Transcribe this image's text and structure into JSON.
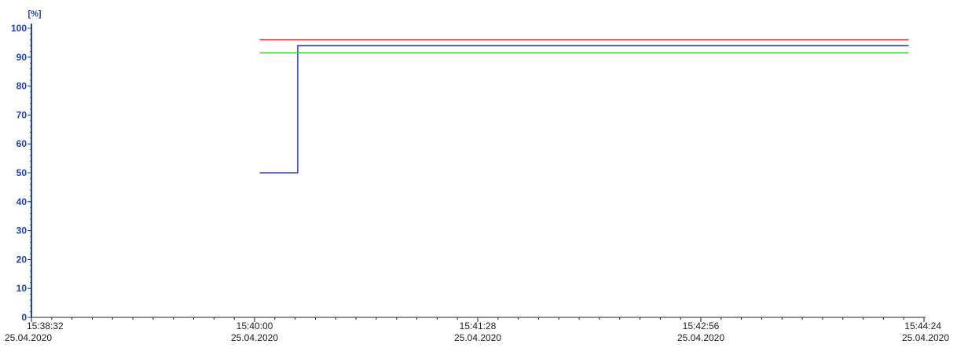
{
  "chart_data": {
    "type": "line",
    "title": "",
    "xlabel": "",
    "ylabel": "[%]",
    "ylim": [
      0,
      100
    ],
    "y_ticks": [
      "0",
      "10",
      "20",
      "30",
      "40",
      "50",
      "60",
      "70",
      "80",
      "90",
      "100"
    ],
    "x_ticks": [
      {
        "time": "15:38:32",
        "date": "25.04.2020"
      },
      {
        "time": "15:40:00",
        "date": "25.04.2020"
      },
      {
        "time": "15:41:28",
        "date": "25.04.2020"
      },
      {
        "time": "15:42:56",
        "date": "25.04.2020"
      },
      {
        "time": "15:44:24",
        "date": "25.04.2020"
      }
    ],
    "xlim": [
      "15:38:32",
      "15:44:24"
    ],
    "grid": false,
    "legend": "none",
    "step": true,
    "series": [
      {
        "color": "#e8453c",
        "points": [
          {
            "x": "15:40:02",
            "y": 96
          },
          {
            "x": "15:44:18",
            "y": 96
          }
        ]
      },
      {
        "color": "#2e3fd0",
        "points": [
          {
            "x": "15:40:02",
            "y": 50
          },
          {
            "x": "15:40:17",
            "y": 50
          },
          {
            "x": "15:40:17",
            "y": 94
          },
          {
            "x": "15:44:18",
            "y": 94
          }
        ]
      },
      {
        "color": "#39d13a",
        "points": [
          {
            "x": "15:40:02",
            "y": 91.5
          },
          {
            "x": "15:44:18",
            "y": 91.5
          }
        ]
      }
    ]
  }
}
